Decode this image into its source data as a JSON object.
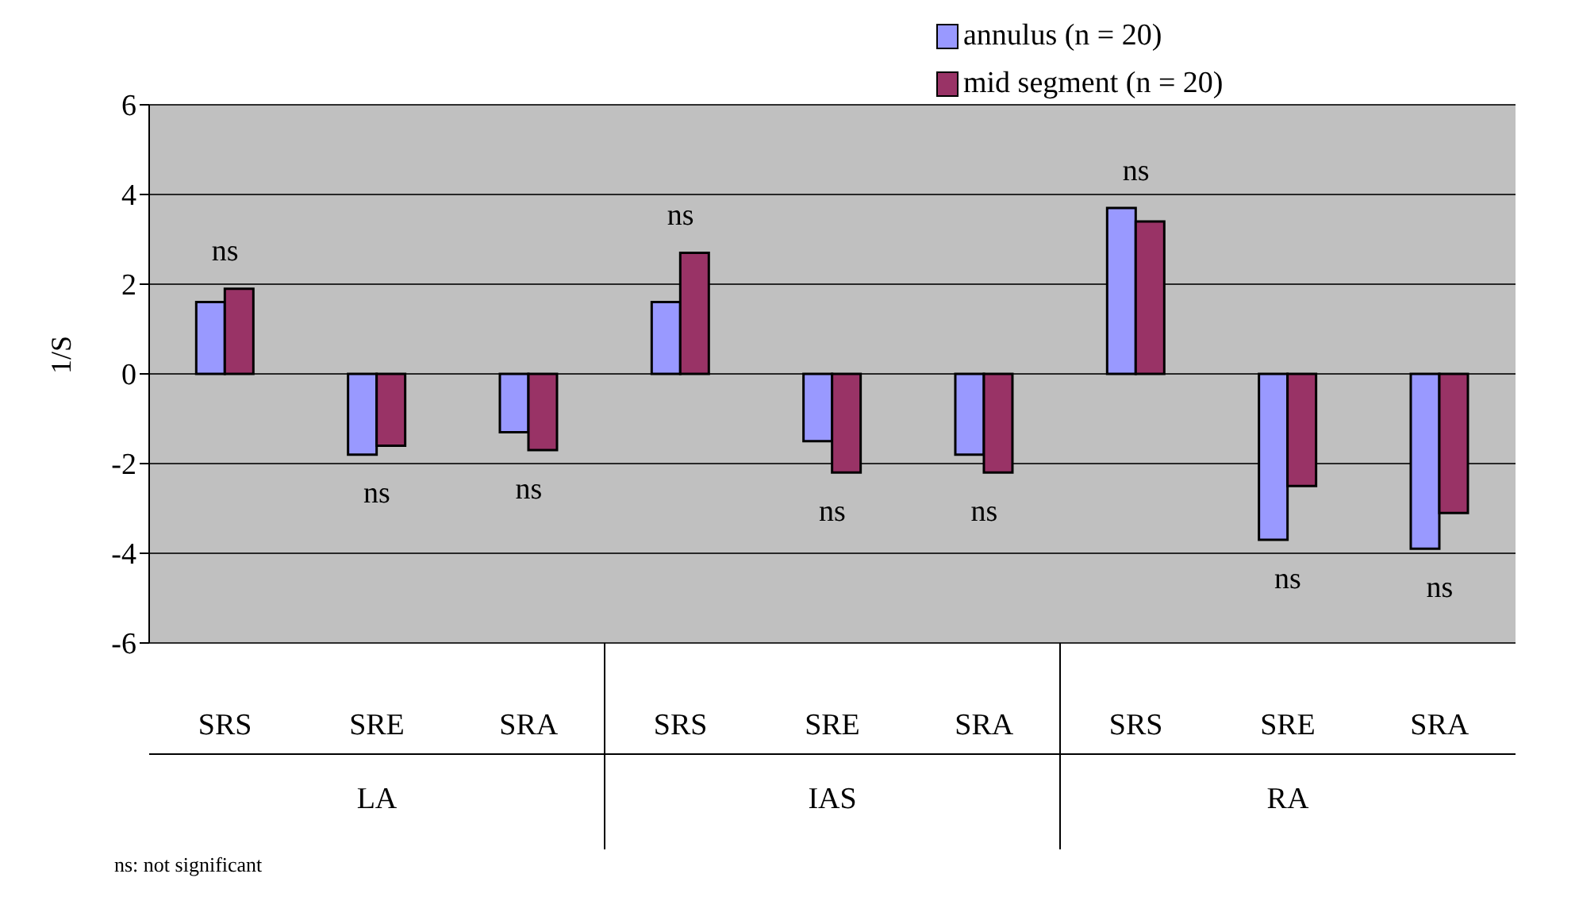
{
  "chart_data": {
    "type": "bar",
    "ylabel": "1/S",
    "categories": [
      "SRS",
      "SRE",
      "SRA",
      "SRS",
      "SRE",
      "SRA",
      "SRS",
      "SRE",
      "SRA"
    ],
    "series": [
      {
        "name": "annulus (n = 20)",
        "color": "#9999ff",
        "values": [
          1.6,
          -1.8,
          -1.3,
          1.6,
          -1.5,
          -1.8,
          3.7,
          -3.7,
          -3.9
        ]
      },
      {
        "name": "mid segment (n = 20)",
        "color": "#993366",
        "values": [
          1.9,
          -1.6,
          -1.7,
          2.7,
          -2.2,
          -2.2,
          3.4,
          -2.5,
          -3.1
        ]
      }
    ],
    "ylim": [
      -6,
      6
    ],
    "yticks": [
      -6,
      -4,
      -2,
      0,
      2,
      4,
      6
    ],
    "grid": "y",
    "legend": "top right",
    "annotations": [
      "ns",
      "ns",
      "ns",
      "ns",
      "ns",
      "ns",
      "ns",
      "ns",
      "ns",
      "LA",
      "IAS",
      "RA",
      "ns: not significant"
    ]
  }
}
